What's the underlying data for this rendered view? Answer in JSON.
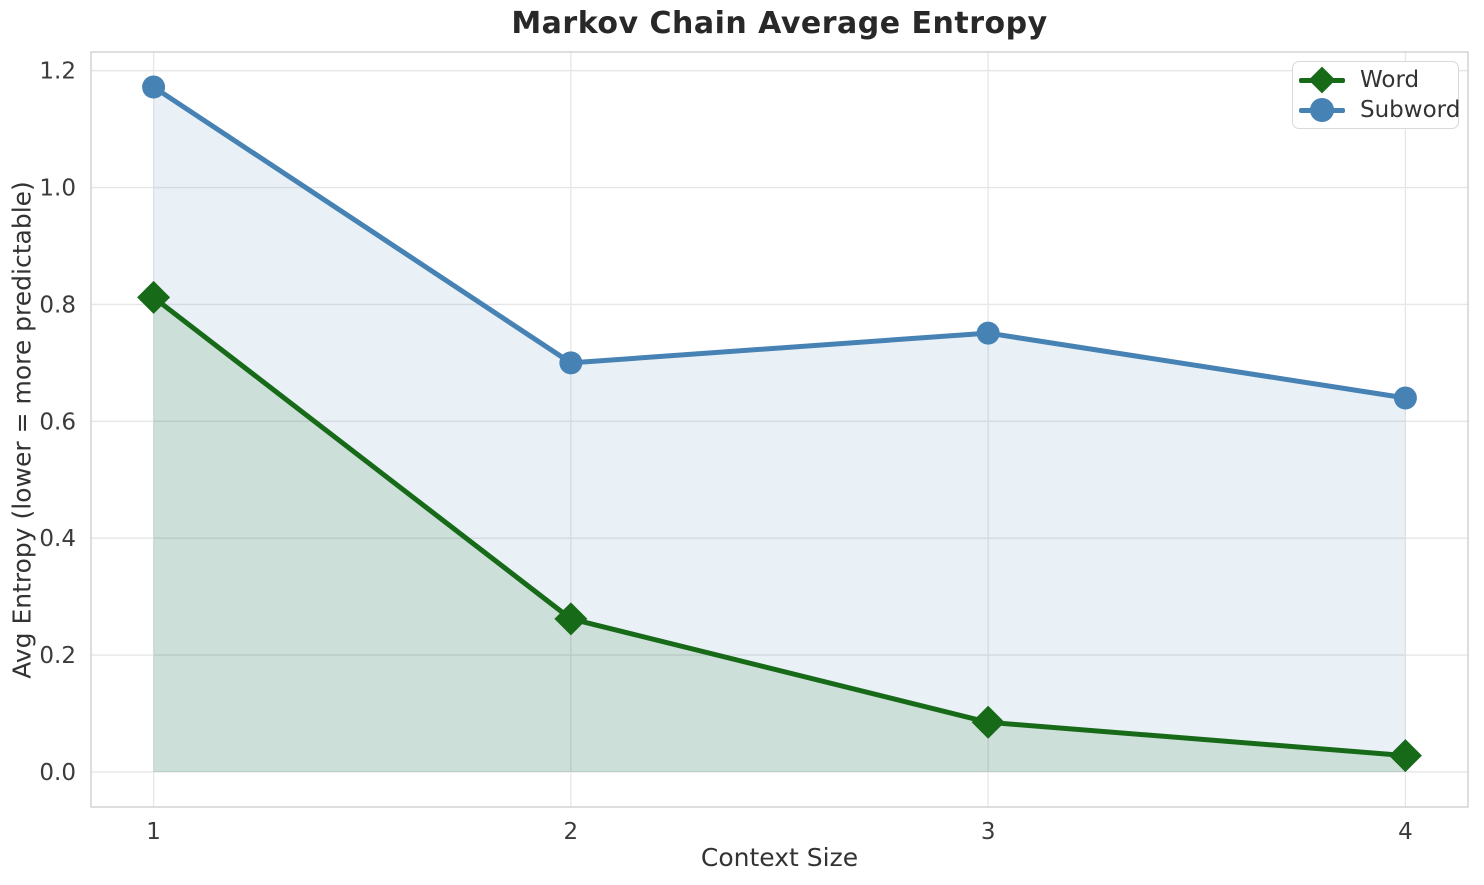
{
  "chart_data": {
    "type": "line",
    "title": "Markov Chain Average Entropy",
    "xlabel": "Context Size",
    "ylabel": "Avg Entropy (lower = more predictable)",
    "x": [
      1,
      2,
      3,
      4
    ],
    "series": [
      {
        "name": "Word",
        "values": [
          0.812,
          0.262,
          0.085,
          0.028
        ],
        "color": "#176a18",
        "fill_color": "rgba(23, 106, 24, 0.13)",
        "marker": "diamond"
      },
      {
        "name": "Subword",
        "values": [
          1.172,
          0.7,
          0.751,
          0.64
        ],
        "color": "#4682b4",
        "fill_color": "rgba(70, 130, 180, 0.12)",
        "marker": "circle"
      }
    ],
    "xticks": [
      1,
      2,
      3,
      4
    ],
    "xtick_labels": [
      "1",
      "2",
      "3",
      "4"
    ],
    "yticks": [
      0.0,
      0.2,
      0.4,
      0.6,
      0.8,
      1.0,
      1.2
    ],
    "ytick_labels": [
      "0.0",
      "0.2",
      "0.4",
      "0.6",
      "0.8",
      "1.0",
      "1.2"
    ],
    "xlim": [
      0.85,
      4.15
    ],
    "ylim": [
      -0.06,
      1.232
    ],
    "fill_baseline": 0,
    "grid": true,
    "legend": {
      "position": "upper right",
      "entries": [
        "Word",
        "Subword"
      ]
    }
  },
  "colors": {
    "grid": "#e6e6e6",
    "spine": "#cccccc",
    "tick_text": "#3b3b3b",
    "title_text": "#282828"
  }
}
